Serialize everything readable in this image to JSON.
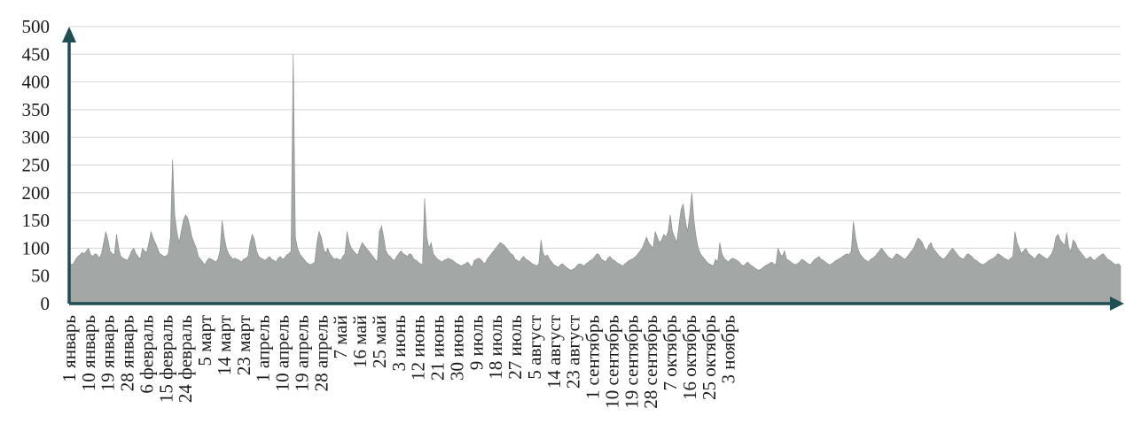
{
  "chart_data": {
    "type": "area",
    "title": "",
    "xlabel": "",
    "ylabel": "",
    "ylim": [
      0,
      500
    ],
    "grid": true,
    "y_ticks": [
      0,
      50,
      100,
      150,
      200,
      250,
      300,
      350,
      400,
      450,
      500
    ],
    "x_tick_labels": [
      "1 январь",
      "10 январь",
      "19 январь",
      "28 январь",
      "6 февраль",
      "15 февраль",
      "24 февраль",
      "5 март",
      "14 март",
      "23 март",
      "1 апрель",
      "10 апрель",
      "19 апрель",
      "28 апрель",
      "7 май",
      "16 май",
      "25 май",
      "3 июнь",
      "12 июнь",
      "21 июнь",
      "30 июнь",
      "9 июль",
      "18 июль",
      "27 июль",
      "5 август",
      "14 август",
      "23 август",
      "1 сентябрь",
      "10 сентябрь",
      "19 сентябрь",
      "28 сентябрь",
      "7 октябрь",
      "16 октябрь",
      "25 октябрь",
      "3 ноябрь"
    ],
    "x_start": "1 январь",
    "x_step_days": 1,
    "days_between_ticks": 9,
    "series": [
      {
        "name": "",
        "color": "#a3a7a6",
        "values": [
          75,
          70,
          72,
          80,
          85,
          88,
          92,
          90,
          95,
          100,
          88,
          85,
          90,
          88,
          82,
          90,
          110,
          130,
          115,
          95,
          90,
          88,
          125,
          100,
          85,
          82,
          80,
          78,
          85,
          95,
          100,
          90,
          85,
          80,
          100,
          95,
          92,
          110,
          130,
          118,
          110,
          100,
          90,
          88,
          85,
          86,
          90,
          120,
          260,
          160,
          130,
          110,
          130,
          150,
          160,
          155,
          140,
          120,
          110,
          100,
          85,
          80,
          75,
          70,
          78,
          82,
          80,
          78,
          75,
          80,
          95,
          150,
          120,
          100,
          90,
          85,
          80,
          82,
          80,
          78,
          75,
          80,
          82,
          85,
          110,
          125,
          115,
          95,
          85,
          82,
          80,
          78,
          82,
          85,
          80,
          78,
          75,
          82,
          85,
          80,
          82,
          88,
          90,
          95,
          450,
          120,
          100,
          90,
          85,
          80,
          75,
          72,
          70,
          72,
          75,
          110,
          130,
          120,
          100,
          90,
          100,
          90,
          85,
          80,
          82,
          80,
          78,
          85,
          90,
          130,
          110,
          100,
          95,
          90,
          88,
          100,
          110,
          105,
          100,
          95,
          90,
          85,
          80,
          75,
          130,
          140,
          120,
          95,
          88,
          85,
          80,
          78,
          85,
          90,
          95,
          90,
          88,
          85,
          90,
          88,
          80,
          78,
          75,
          72,
          70,
          190,
          120,
          100,
          110,
          90,
          85,
          80,
          78,
          75,
          78,
          80,
          82,
          80,
          78,
          75,
          72,
          70,
          68,
          70,
          72,
          75,
          70,
          65,
          78,
          80,
          82,
          80,
          75,
          72,
          80,
          85,
          90,
          95,
          100,
          105,
          110,
          108,
          105,
          100,
          95,
          90,
          88,
          80,
          78,
          75,
          82,
          85,
          80,
          78,
          75,
          72,
          70,
          68,
          72,
          115,
          90,
          85,
          88,
          80,
          75,
          70,
          68,
          65,
          70,
          72,
          68,
          65,
          62,
          60,
          62,
          65,
          70,
          72,
          70,
          68,
          72,
          75,
          78,
          80,
          85,
          90,
          88,
          80,
          78,
          75,
          82,
          85,
          80,
          78,
          75,
          72,
          70,
          68,
          72,
          75,
          78,
          80,
          82,
          85,
          90,
          95,
          100,
          110,
          120,
          110,
          105,
          100,
          130,
          120,
          110,
          115,
          125,
          120,
          130,
          160,
          130,
          120,
          110,
          140,
          170,
          180,
          150,
          130,
          160,
          200,
          150,
          120,
          100,
          90,
          85,
          80,
          75,
          72,
          70,
          68,
          80,
          75,
          110,
          90,
          82,
          78,
          75,
          80,
          82,
          80,
          78,
          75,
          70,
          68,
          72,
          75,
          70,
          68,
          65,
          62,
          60,
          62,
          65,
          68,
          70,
          72,
          75,
          72,
          70,
          100,
          90,
          85,
          95,
          80,
          78,
          75,
          72,
          70,
          72,
          75,
          80,
          78,
          75,
          72,
          70,
          75,
          80,
          82,
          85,
          80,
          78,
          75,
          72,
          70,
          72,
          75,
          78,
          80,
          82,
          85,
          88,
          90,
          88,
          95,
          148,
          120,
          100,
          90,
          85,
          80,
          78,
          75,
          80,
          82,
          85,
          90,
          95,
          100,
          95,
          90,
          85,
          82,
          80,
          85,
          90,
          88,
          85,
          82,
          80,
          85,
          90,
          95,
          100,
          110,
          118,
          115,
          110,
          100,
          95,
          105,
          110,
          100,
          95,
          90,
          85,
          82,
          80,
          85,
          90,
          95,
          100,
          95,
          90,
          85,
          82,
          80,
          85,
          90,
          88,
          85,
          80,
          78,
          75,
          72,
          70,
          72,
          75,
          78,
          80,
          82,
          85,
          90,
          88,
          85,
          82,
          80,
          78,
          82,
          85,
          130,
          110,
          100,
          90,
          95,
          100,
          92,
          88,
          85,
          80,
          85,
          90,
          88,
          85,
          82,
          80,
          85,
          90,
          100,
          120,
          125,
          115,
          110,
          105,
          128,
          100,
          95,
          115,
          110,
          100,
          95,
          90,
          85,
          80,
          82,
          85,
          80,
          78,
          82,
          85,
          88,
          90,
          85,
          80,
          78,
          75,
          72,
          70,
          72,
          68
        ]
      }
    ]
  }
}
